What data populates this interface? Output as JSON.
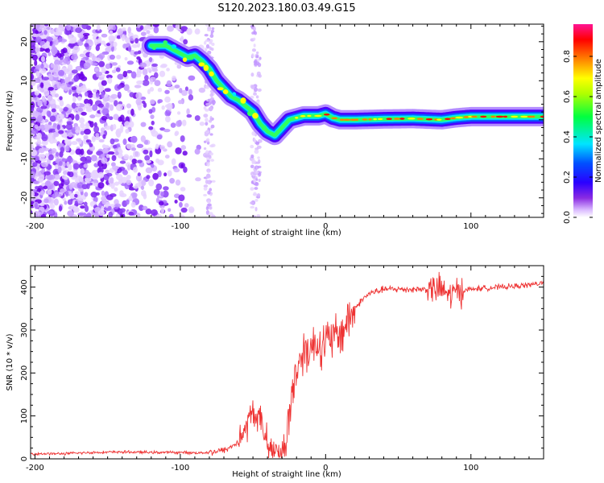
{
  "title": "S120.2023.180.03.49.G15",
  "chart_data": [
    {
      "type": "heatmap",
      "xlabel": "Height of straight line (km)",
      "ylabel": "Frequency (Hz)",
      "xlim": [
        -203,
        150
      ],
      "ylim": [
        -25,
        24.5
      ],
      "x_ticks": [
        "-200",
        "-100",
        "0",
        "100"
      ],
      "x_tick_values": [
        -200,
        -100,
        0,
        100
      ],
      "y_ticks": [
        "20",
        "10",
        "0",
        "-10",
        "-20"
      ],
      "y_tick_values": [
        20,
        10,
        0,
        -10,
        -20
      ],
      "colorbar": {
        "label": "Normalized spectral amplitude",
        "ticks": [
          "0.0",
          "0.2",
          "0.4",
          "0.6",
          "0.8"
        ],
        "tick_values": [
          0.0,
          0.2,
          0.4,
          0.6,
          0.8
        ],
        "range": [
          0.0,
          0.96
        ],
        "colormap": [
          "#ffffff",
          "#6a00ff",
          "#0000ff",
          "#00e5ff",
          "#00ff00",
          "#ffff00",
          "#ff8000",
          "#ff0000",
          "#ff1493"
        ]
      },
      "ridge": {
        "x": [
          -120,
          -110,
          -100,
          -95,
          -90,
          -85,
          -80,
          -75,
          -70,
          -65,
          -60,
          -55,
          -50,
          -45,
          -40,
          -35,
          -30,
          -25,
          -20,
          -15,
          -10,
          -5,
          0,
          5,
          10,
          20,
          40,
          60,
          80,
          90,
          100,
          120,
          150
        ],
        "frequency": [
          19,
          19,
          17,
          16,
          16.5,
          15,
          13,
          10,
          8,
          6,
          5,
          3.5,
          2,
          -1,
          -3,
          -4,
          -2,
          0,
          0.5,
          1,
          1,
          1,
          1.5,
          0.5,
          0,
          0,
          0.2,
          0.3,
          0,
          0.5,
          0.8,
          0.8,
          0.8
        ]
      },
      "noise_region_x": [
        -203,
        -75
      ]
    },
    {
      "type": "line",
      "xlabel": "Height of straight line (km)",
      "ylabel": "SNR (10 * v/v)",
      "xlim": [
        -203,
        150
      ],
      "ylim": [
        0,
        450
      ],
      "x_ticks": [
        "-200",
        "-100",
        "0",
        "100"
      ],
      "x_tick_values": [
        -200,
        -100,
        0,
        100
      ],
      "y_ticks": [
        "0",
        "100",
        "200",
        "300",
        "400"
      ],
      "y_tick_values": [
        0,
        100,
        200,
        300,
        400
      ],
      "color": "#ee3333",
      "series": [
        {
          "x": [
            -203,
            -180,
            -160,
            -140,
            -120,
            -100,
            -90,
            -80,
            -70,
            -65,
            -60,
            -55,
            -50,
            -45,
            -40,
            -38,
            -35,
            -32,
            -30,
            -28,
            -25,
            -22,
            -20,
            -18,
            -15,
            -12,
            -10,
            -5,
            0,
            5,
            10,
            15,
            20,
            25,
            30,
            40,
            50,
            60,
            70,
            80,
            85,
            90,
            100,
            110,
            120,
            130,
            140,
            150
          ],
          "y": [
            12,
            12,
            15,
            16,
            15,
            15,
            14,
            15,
            20,
            28,
            40,
            70,
            110,
            90,
            40,
            30,
            25,
            20,
            15,
            30,
            100,
            180,
            200,
            230,
            250,
            260,
            260,
            270,
            270,
            280,
            290,
            320,
            350,
            370,
            385,
            395,
            395,
            395,
            395,
            395,
            380,
            390,
            395,
            398,
            400,
            402,
            405,
            410
          ]
        }
      ]
    }
  ]
}
